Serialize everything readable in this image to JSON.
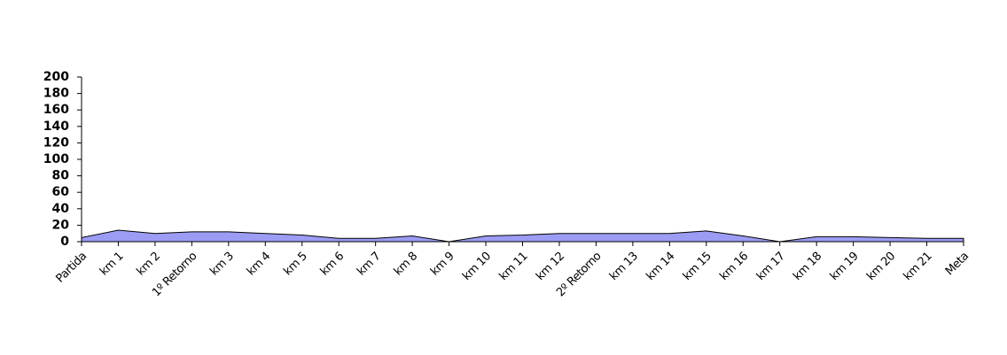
{
  "chart_data": {
    "type": "area",
    "categories": [
      "Partida",
      "km 1",
      "km 2",
      "1º Retorno",
      "km 3",
      "km 4",
      "km 5",
      "km 6",
      "km 7",
      "km 8",
      "km 9",
      "km 10",
      "km 11",
      "km 12",
      "2º Retorno",
      "km 13",
      "km 14",
      "km 15",
      "km 16",
      "km 17",
      "km 18",
      "km 19",
      "km 20",
      "km 21",
      "Meta"
    ],
    "values": [
      5,
      14,
      10,
      12,
      12,
      10,
      8,
      4,
      4,
      7,
      0,
      7,
      8,
      10,
      10,
      10,
      10,
      13,
      7,
      0,
      6,
      6,
      5,
      4,
      4
    ],
    "color": "#9c9cf5",
    "ylim": [
      0,
      200
    ],
    "yticks": [
      0,
      20,
      40,
      60,
      80,
      100,
      120,
      140,
      160,
      180,
      200
    ]
  }
}
